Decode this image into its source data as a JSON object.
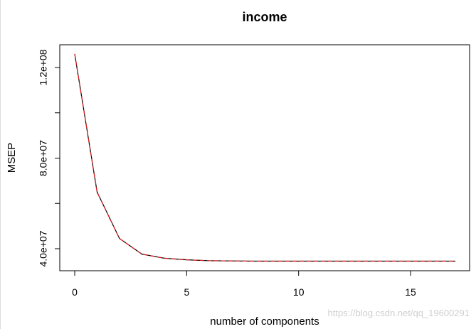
{
  "chart_data": {
    "type": "line",
    "title": "income",
    "xlabel": "number of components",
    "ylabel": "MSEP",
    "xlim": [
      0,
      17
    ],
    "ylim": [
      35000000,
      125000000
    ],
    "x_ticks": [
      0,
      5,
      10,
      15
    ],
    "x_tick_labels": [
      "0",
      "5",
      "10",
      "15"
    ],
    "y_ticks": [
      40000000,
      60000000,
      80000000,
      100000000,
      120000000
    ],
    "y_tick_labels": [
      "4.0e+07",
      "",
      "8.0e+07",
      "",
      "1.2e+08"
    ],
    "grid": false,
    "x": [
      0,
      1,
      2,
      3,
      4,
      5,
      6,
      7,
      8,
      9,
      10,
      11,
      12,
      13,
      14,
      15,
      16,
      17
    ],
    "series": [
      {
        "name": "",
        "color": "#000000",
        "values": [
          126000000,
          65000000,
          44500000,
          37600000,
          35800000,
          35100000,
          34700000,
          34600000,
          34500000,
          34500000,
          34500000,
          34500000,
          34500000,
          34500000,
          34500000,
          34500000,
          34500000,
          34500000
        ]
      },
      {
        "name": "",
        "color": "#e41a1c",
        "values": [
          126000000,
          65000000,
          44500000,
          37600000,
          35800000,
          35100000,
          34700000,
          34600000,
          34500000,
          34500000,
          34500000,
          34500000,
          34500000,
          34500000,
          34500000,
          34500000,
          34500000,
          34500000
        ]
      }
    ]
  },
  "watermark": "https://blog.csdn.net/qq_19600291"
}
